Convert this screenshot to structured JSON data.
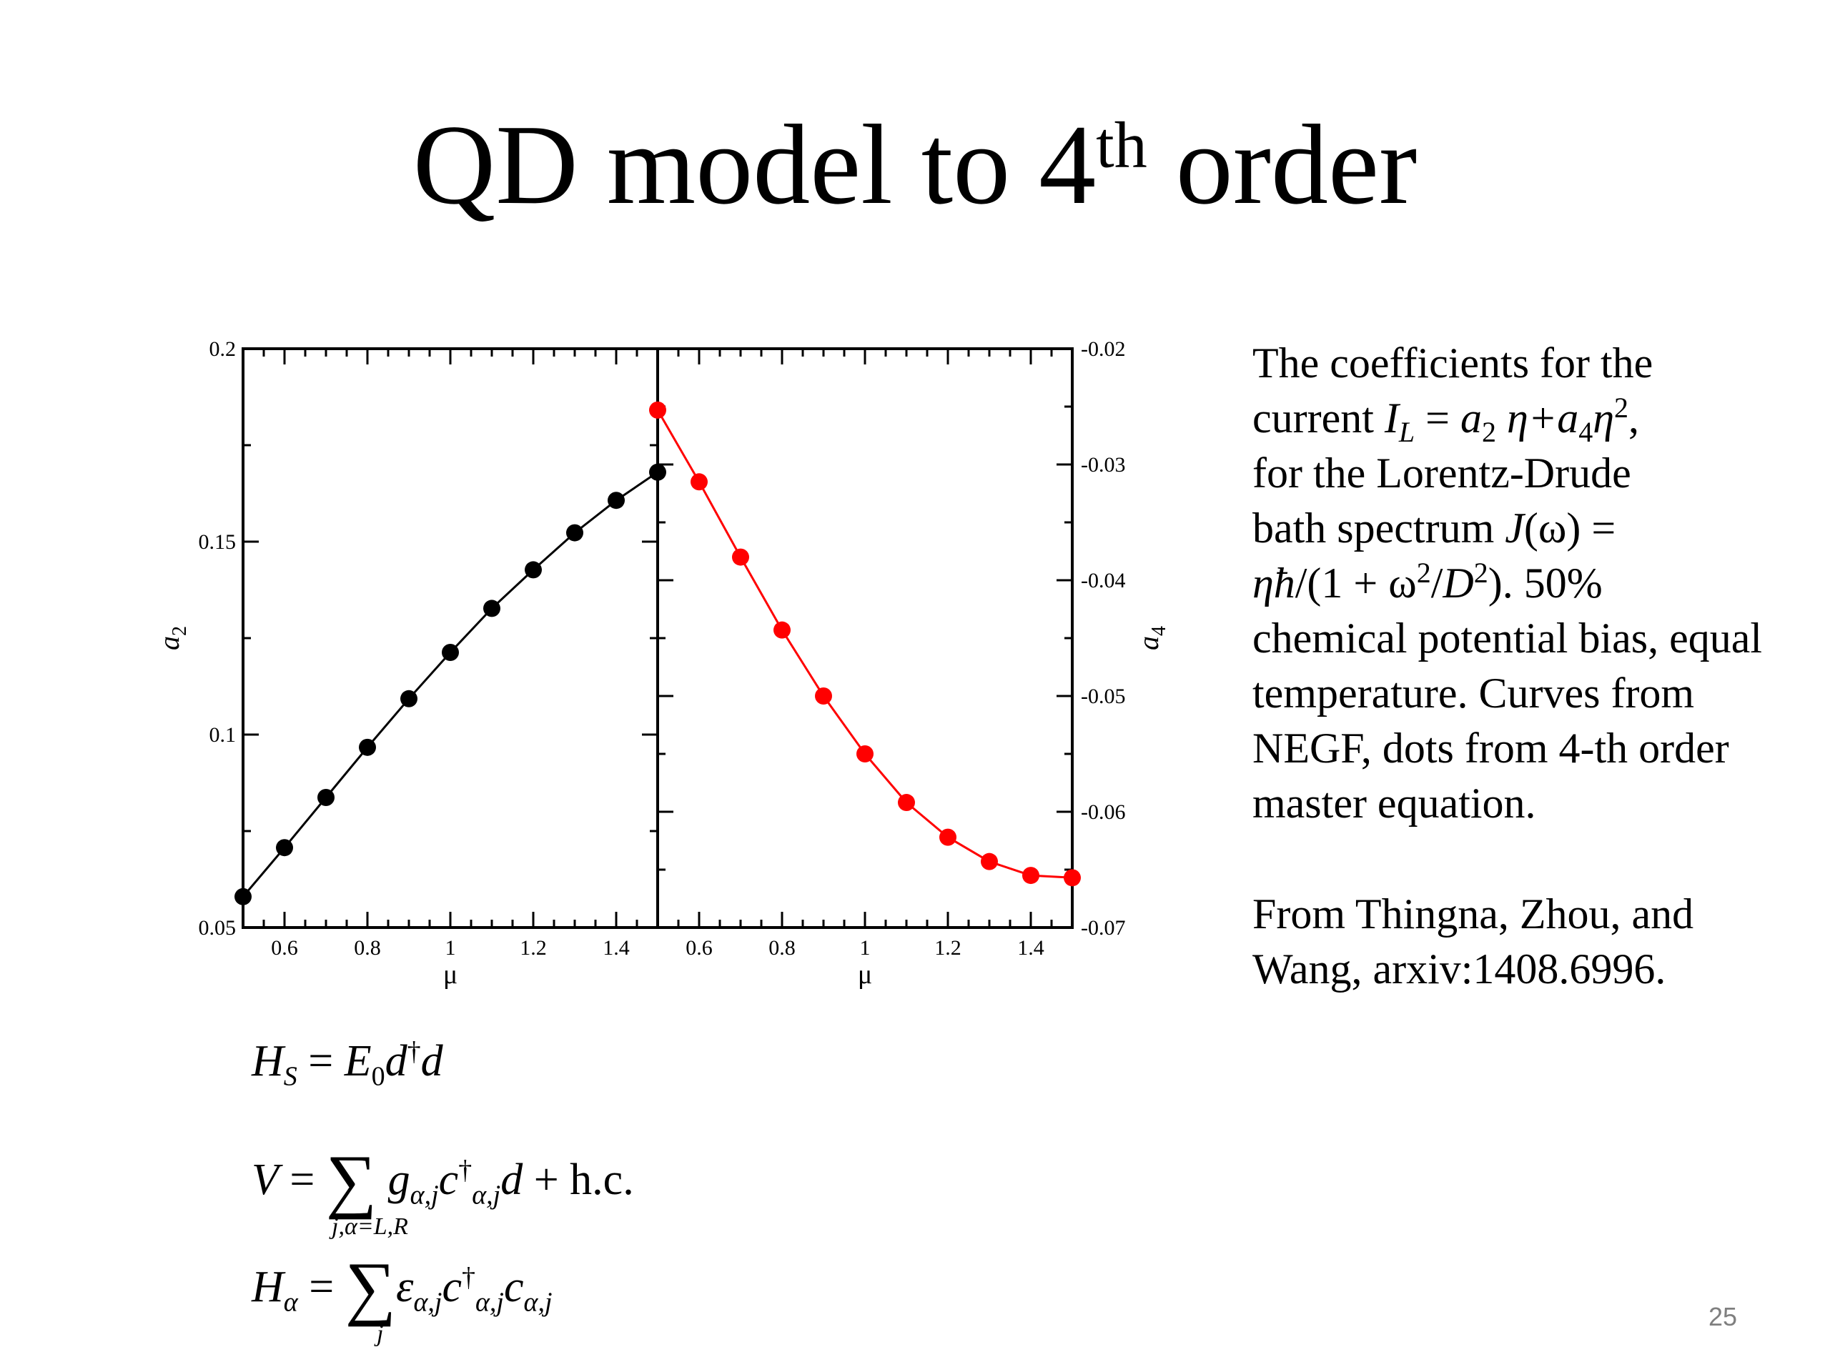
{
  "slide": {
    "title_main": "QD model to 4",
    "title_sup": "th",
    "title_end": " order",
    "page_number": "25"
  },
  "description": {
    "line1": "The coefficients for the",
    "i_current": "current ",
    "i_label": "I",
    "i_sub": "L",
    "i_eq": " = ",
    "i_a2": "a",
    "i_a2sub": "2",
    "i_eta1": " η+",
    "i_a4": "a",
    "i_a4sub": "4",
    "i_eta2": "η",
    "i_sq": "2",
    "i_comma": ",",
    "line3": "for the Lorentz-Drude",
    "bath_pre": "bath spectrum ",
    "bath_J": "J",
    "bath_omega": "(ω) =",
    "formula_eta": "ηħ",
    "formula_mid": "/(1 + ω",
    "formula_sq1": "2",
    "formula_slash": "/",
    "formula_D": "D",
    "formula_sq2": "2",
    "formula_end": ").",
    "pct": "  50%",
    "rest": "chemical potential bias, equal temperature. Curves from NEGF, dots from 4-th order master equation.",
    "source": "From Thingna, Zhou, and Wang, arxiv:1408.6996."
  },
  "equations": {
    "hs_H": "H",
    "hs_sub": "S",
    "hs_eq": " = ",
    "hs_E": "E",
    "hs_E_sub": "0",
    "hs_d": "d",
    "hs_dag": "†",
    "hs_d2": "d",
    "v_V": "V",
    "v_eq": " = ",
    "v_sum": "∑",
    "v_limits": "j,α=L,R",
    "v_g": "g",
    "v_g_sub": "α,j",
    "v_c": "c",
    "v_c_sup": "†",
    "v_c_sub": "α,j",
    "v_d": "d",
    "v_hc": " + h.c.",
    "ha_H": "H",
    "ha_sub": "α",
    "ha_eq": " = ",
    "ha_sum": "∑",
    "ha_limits": "j",
    "ha_eps": "ε",
    "ha_eps_sub": "α,j",
    "ha_c": "c",
    "ha_c_sup": "†",
    "ha_c_sub": "α,j",
    "ha_c2": "c",
    "ha_c2_sub": "α,j"
  },
  "chart_data": [
    {
      "type": "line",
      "panel": "left",
      "xlabel": "μ",
      "ylabel": "a2",
      "xlim": [
        0.5,
        1.5
      ],
      "ylim": [
        0.05,
        0.2
      ],
      "x_ticks": [
        0.6,
        0.8,
        1,
        1.2,
        1.4
      ],
      "x_tick_labels": [
        "0.6",
        "0.8",
        "1",
        "1.2",
        "1.4"
      ],
      "y_ticks": [
        0.05,
        0.1,
        0.15,
        0.2
      ],
      "y_tick_labels": [
        "0.05",
        "0.1",
        "0.15",
        "0.2"
      ],
      "color": "#000000",
      "series": [
        {
          "x": [
            0.5,
            0.6,
            0.7,
            0.8,
            0.9,
            1.0,
            1.1,
            1.2,
            1.3,
            1.4,
            1.5
          ],
          "values": [
            0.058,
            0.0707,
            0.0837,
            0.0967,
            0.1093,
            0.1213,
            0.1327,
            0.1427,
            0.1523,
            0.1607,
            0.168
          ]
        }
      ]
    },
    {
      "type": "line",
      "panel": "right",
      "xlabel": "μ",
      "ylabel": "a4",
      "xlim": [
        0.5,
        1.5
      ],
      "ylim": [
        -0.07,
        -0.02
      ],
      "x_ticks": [
        0.6,
        0.8,
        1,
        1.2,
        1.4
      ],
      "x_tick_labels": [
        "0.6",
        "0.8",
        "1",
        "1.2",
        "1.4"
      ],
      "y_ticks": [
        -0.07,
        -0.06,
        -0.05,
        -0.04,
        -0.03,
        -0.02
      ],
      "y_tick_labels": [
        "-0.07",
        "-0.06",
        "-0.05",
        "-0.04",
        "-0.03",
        "-0.02"
      ],
      "color": "#ff0000",
      "series": [
        {
          "x": [
            0.5,
            0.6,
            0.7,
            0.8,
            0.9,
            1.0,
            1.1,
            1.2,
            1.3,
            1.4,
            1.5
          ],
          "values": [
            -0.0253,
            -0.0315,
            -0.038,
            -0.0443,
            -0.05,
            -0.055,
            -0.0592,
            -0.0622,
            -0.0643,
            -0.0655,
            -0.0657
          ]
        }
      ]
    }
  ]
}
